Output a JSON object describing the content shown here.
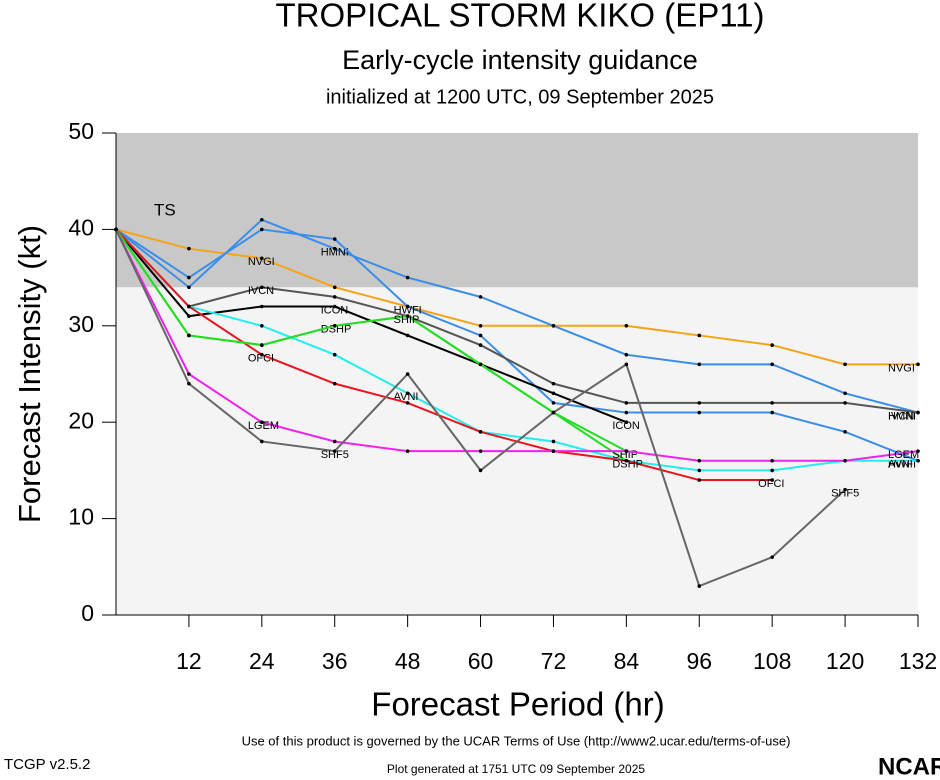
{
  "chart_data": {
    "type": "line",
    "title": "TROPICAL STORM KIKO (EP11)",
    "subtitle": "Early-cycle intensity guidance",
    "initialized": "initialized at 1200 UTC, 09 September 2025",
    "xlabel": "Forecast Period (hr)",
    "ylabel": "Forecast Intensity (kt)",
    "x": [
      0,
      12,
      24,
      36,
      48,
      60,
      72,
      84,
      96,
      108,
      120,
      132
    ],
    "xlim": [
      0,
      132
    ],
    "xticks": [
      12,
      24,
      36,
      48,
      60,
      72,
      84,
      96,
      108,
      120,
      132
    ],
    "ylim": [
      0,
      50
    ],
    "yticks": [
      0,
      10,
      20,
      30,
      40,
      50
    ],
    "bands": [
      {
        "label": "TS",
        "from": 34,
        "to": 50,
        "color": "#c8c8c8"
      }
    ],
    "background": "#f4f4f4",
    "series": [
      {
        "name": "NVGI",
        "color": "#f5a31a",
        "values": [
          40,
          38,
          37,
          34,
          32,
          30,
          30,
          30,
          29,
          28,
          26,
          26
        ]
      },
      {
        "name": "HMNI",
        "color": "#3b8ee8",
        "values": [
          40,
          34,
          41,
          38,
          35,
          33,
          30,
          27,
          26,
          26,
          23,
          21
        ]
      },
      {
        "name": "HWFI",
        "color": "#3b8ee8",
        "values": [
          40,
          35,
          40,
          39,
          32,
          29,
          22,
          21,
          21,
          21,
          19,
          16
        ]
      },
      {
        "name": "IVCN",
        "color": "#555555",
        "values": [
          40,
          32,
          34,
          33,
          31,
          28,
          24,
          22,
          22,
          22,
          22,
          21
        ]
      },
      {
        "name": "ICON",
        "color": "#000000",
        "values": [
          40,
          31,
          32,
          32,
          29,
          26,
          23,
          20,
          null,
          null,
          null,
          null
        ]
      },
      {
        "name": "AVNI",
        "color": "#22eeee",
        "values": [
          40,
          32,
          30,
          27,
          23,
          19,
          18,
          16,
          15,
          15,
          16,
          16
        ]
      },
      {
        "name": "OFCI",
        "color": "#e8141e",
        "values": [
          40,
          32,
          27,
          24,
          22,
          19,
          17,
          16,
          14,
          14,
          null,
          null
        ]
      },
      {
        "name": "DSHP",
        "color": "#22dd22",
        "values": [
          40,
          29,
          28,
          30,
          31,
          26,
          21,
          16,
          null,
          null,
          null,
          null
        ]
      },
      {
        "name": "SHIP",
        "color": "#22dd22",
        "values": [
          40,
          29,
          28,
          30,
          31,
          26,
          21,
          17,
          null,
          null,
          null,
          null
        ]
      },
      {
        "name": "LGEM",
        "color": "#ee22ee",
        "values": [
          40,
          25,
          20,
          18,
          17,
          17,
          17,
          17,
          16,
          16,
          16,
          17
        ]
      },
      {
        "name": "SHF5",
        "color": "#666666",
        "values": [
          40,
          24,
          18,
          17,
          25,
          15,
          21,
          26,
          3,
          6,
          13,
          null
        ]
      }
    ],
    "footer": {
      "terms": "Use of this product is governed by the UCAR Terms of Use (http://www2.ucar.edu/terms-of-use)",
      "version": "TCGP v2.5.2",
      "generated": "Plot generated at 1751 UTC   09 September 2025",
      "logo": "NCAR"
    }
  }
}
